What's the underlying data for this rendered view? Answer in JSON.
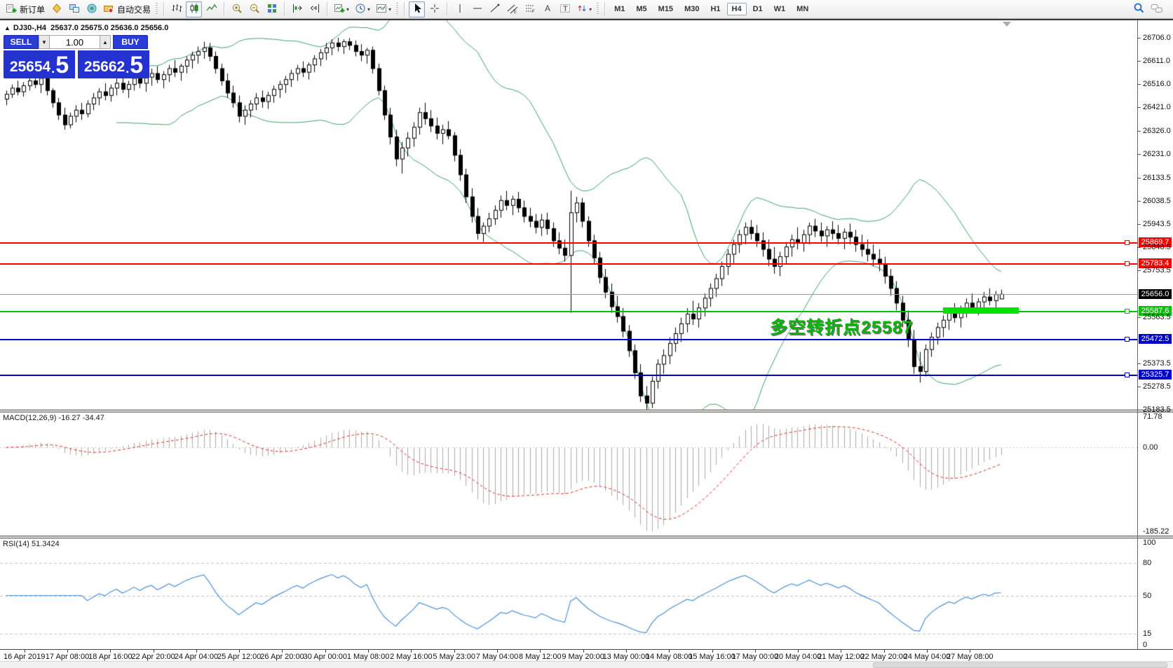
{
  "toolbar": {
    "new_order_label": "新订单",
    "auto_trading_label": "自动交易",
    "timeframes": [
      "M1",
      "M5",
      "M15",
      "M30",
      "H1",
      "H4",
      "D1",
      "W1",
      "MN"
    ],
    "active_timeframe": "H4"
  },
  "trade_panel": {
    "sell_label": "SELL",
    "buy_label": "BUY",
    "volume": "1.00",
    "sell_price_int": "25654",
    "sell_price_dec": "5",
    "buy_price_int": "25662",
    "buy_price_dec": "5"
  },
  "symbol_header": {
    "name": "DJ30-,H4",
    "ohlc": "25637.0 25675.0 25636.0 25656.0"
  },
  "annotation": {
    "text": "多空转折点25587"
  },
  "macd_label": "MACD(12,26,9) -16.27 -34.47",
  "rsi_label": "RSI(14) 51.3424",
  "colors": {
    "bull": "#ffffff",
    "bear": "#000000",
    "outline": "#000000",
    "bollinger": "#3da06a",
    "level_red": "#ff0000",
    "level_green": "#00c400",
    "level_blue": "#0000c8",
    "current_line": "#9c9c9c",
    "current_badge": "#000000",
    "macd_hist": "#ababab",
    "macd_signal": "#dd2c2c",
    "rsi_line": "#4a90d8",
    "rsi_levels": "#c4c4c4",
    "trade_blue": "#2a3cd6",
    "annotation_green": "#00b800",
    "highlight_green": "#00e300"
  },
  "chart_data": {
    "type": "candlestick",
    "symbol": "DJ30-",
    "timeframe": "H4",
    "title": "DJ30-,H4",
    "current_price": 25656.0,
    "ohlc_display": [
      25637.0,
      25675.0,
      25636.0,
      25656.0
    ],
    "y_ticks": [
      26706.0,
      26611.0,
      26516.0,
      26421.0,
      26326.0,
      26231.0,
      26133.5,
      26038.5,
      25943.5,
      25848.5,
      25753.5,
      25563.5,
      25373.5,
      25278.5,
      25183.5
    ],
    "y_range_note": "top 26706.0 bottom 25183.5 visible scale",
    "x_labels": [
      "16 Apr 2019",
      "17 Apr 08:00",
      "18 Apr 16:00",
      "22 Apr 20:00",
      "24 Apr 04:00",
      "25 Apr 12:00",
      "26 Apr 20:00",
      "30 Apr 00:00",
      "1 May 08:00",
      "2 May 16:00",
      "5 May 23:00",
      "7 May 04:00",
      "8 May 12:00",
      "9 May 20:00",
      "13 May 00:00",
      "14 May 08:00",
      "15 May 16:00",
      "17 May 00:00",
      "20 May 04:00",
      "21 May 12:00",
      "22 May 20:00",
      "24 May 04:00",
      "27 May 08:00"
    ],
    "price_levels": [
      {
        "value": 25869.7,
        "color": "red"
      },
      {
        "value": 25783.4,
        "color": "red"
      },
      {
        "value": 25656.0,
        "color": "current"
      },
      {
        "value": 25587.6,
        "color": "green"
      },
      {
        "value": 25472.5,
        "color": "blue"
      },
      {
        "value": 25325.7,
        "color": "blue"
      }
    ],
    "highlight_segment": {
      "price": 25587.6,
      "from_bar": 161,
      "to_bar": 174
    },
    "indicators": {
      "bollinger": {
        "period": 20,
        "deviation": 2
      },
      "macd": {
        "fast": 12,
        "slow": 26,
        "signal": 9,
        "current_main": -16.27,
        "current_signal": -34.47,
        "scale_ticks": [
          "71.78",
          "0.00",
          "-185.22"
        ],
        "scale_range": [
          71.78,
          -185.22
        ]
      },
      "rsi": {
        "period": 14,
        "current": 51.3424,
        "scale_ticks": [
          "100",
          "80",
          "50",
          "15",
          "0"
        ],
        "levels": [
          80,
          50,
          15
        ]
      }
    },
    "candles": [
      [
        26455,
        26490,
        26430,
        26475
      ],
      [
        26475,
        26515,
        26460,
        26500
      ],
      [
        26500,
        26530,
        26470,
        26485
      ],
      [
        26485,
        26525,
        26465,
        26510
      ],
      [
        26510,
        26545,
        26490,
        26530
      ],
      [
        26530,
        26560,
        26500,
        26515
      ],
      [
        26515,
        26550,
        26480,
        26540
      ],
      [
        26540,
        26555,
        26470,
        26490
      ],
      [
        26490,
        26500,
        26420,
        26440
      ],
      [
        26440,
        26460,
        26370,
        26390
      ],
      [
        26390,
        26420,
        26330,
        26350
      ],
      [
        26350,
        26400,
        26335,
        26385
      ],
      [
        26385,
        26430,
        26360,
        26410
      ],
      [
        26410,
        26440,
        26370,
        26395
      ],
      [
        26395,
        26450,
        26380,
        26435
      ],
      [
        26435,
        26480,
        26410,
        26460
      ],
      [
        26460,
        26500,
        26430,
        26485
      ],
      [
        26485,
        26520,
        26450,
        26470
      ],
      [
        26470,
        26515,
        26445,
        26500
      ],
      [
        26500,
        26540,
        26470,
        26520
      ],
      [
        26520,
        26550,
        26480,
        26495
      ],
      [
        26495,
        26530,
        26460,
        26515
      ],
      [
        26515,
        26555,
        26490,
        26540
      ],
      [
        26540,
        26570,
        26500,
        26520
      ],
      [
        26520,
        26555,
        26485,
        26545
      ],
      [
        26545,
        26580,
        26510,
        26560
      ],
      [
        26560,
        26590,
        26520,
        26535
      ],
      [
        26535,
        26570,
        26500,
        26555
      ],
      [
        26555,
        26595,
        26525,
        26580
      ],
      [
        26580,
        26615,
        26545,
        26565
      ],
      [
        26565,
        26600,
        26530,
        26590
      ],
      [
        26590,
        26630,
        26560,
        26615
      ],
      [
        26615,
        26650,
        26580,
        26635
      ],
      [
        26635,
        26670,
        26600,
        26650
      ],
      [
        26650,
        26690,
        26620,
        26665
      ],
      [
        26665,
        26685,
        26610,
        26630
      ],
      [
        26630,
        26650,
        26560,
        26580
      ],
      [
        26580,
        26600,
        26510,
        26530
      ],
      [
        26530,
        26560,
        26460,
        26480
      ],
      [
        26480,
        26510,
        26420,
        26440
      ],
      [
        26440,
        26470,
        26360,
        26385
      ],
      [
        26385,
        26430,
        26350,
        26410
      ],
      [
        26410,
        26450,
        26380,
        26435
      ],
      [
        26435,
        26480,
        26410,
        26460
      ],
      [
        26460,
        26490,
        26420,
        26445
      ],
      [
        26445,
        26485,
        26415,
        26470
      ],
      [
        26470,
        26510,
        26440,
        26495
      ],
      [
        26495,
        26530,
        26460,
        26515
      ],
      [
        26515,
        26550,
        26480,
        26535
      ],
      [
        26535,
        26575,
        26505,
        26560
      ],
      [
        26560,
        26595,
        26530,
        26580
      ],
      [
        26580,
        26610,
        26545,
        26565
      ],
      [
        26565,
        26605,
        26535,
        26595
      ],
      [
        26595,
        26635,
        26565,
        26620
      ],
      [
        26620,
        26660,
        26590,
        26645
      ],
      [
        26645,
        26685,
        26615,
        26665
      ],
      [
        26665,
        26700,
        26635,
        26685
      ],
      [
        26685,
        26706,
        26650,
        26670
      ],
      [
        26670,
        26700,
        26640,
        26690
      ],
      [
        26690,
        26705,
        26655,
        26675
      ],
      [
        26675,
        26695,
        26630,
        26650
      ],
      [
        26650,
        26680,
        26610,
        26635
      ],
      [
        26635,
        26665,
        26600,
        26655
      ],
      [
        26655,
        26670,
        26560,
        26580
      ],
      [
        26580,
        26600,
        26470,
        26490
      ],
      [
        26490,
        26510,
        26370,
        26390
      ],
      [
        26390,
        26420,
        26270,
        26300
      ],
      [
        26300,
        26330,
        26180,
        26210
      ],
      [
        26210,
        26280,
        26150,
        26255
      ],
      [
        26255,
        26320,
        26220,
        26295
      ],
      [
        26295,
        26360,
        26260,
        26340
      ],
      [
        26340,
        26420,
        26310,
        26400
      ],
      [
        26400,
        26440,
        26350,
        26375
      ],
      [
        26375,
        26410,
        26320,
        26345
      ],
      [
        26345,
        26380,
        26290,
        26315
      ],
      [
        26315,
        26350,
        26270,
        26330
      ],
      [
        26330,
        26365,
        26290,
        26305
      ],
      [
        26305,
        26320,
        26200,
        26225
      ],
      [
        26225,
        26250,
        26120,
        26145
      ],
      [
        26145,
        26170,
        26030,
        26055
      ],
      [
        26055,
        26090,
        25950,
        25975
      ],
      [
        25975,
        26010,
        25880,
        25905
      ],
      [
        25905,
        25950,
        25870,
        25935
      ],
      [
        25935,
        25990,
        25910,
        25965
      ],
      [
        25965,
        26020,
        25940,
        26000
      ],
      [
        26000,
        26060,
        25970,
        26040
      ],
      [
        26040,
        26080,
        26000,
        26020
      ],
      [
        26020,
        26060,
        25980,
        26045
      ],
      [
        26045,
        26075,
        25990,
        26010
      ],
      [
        26010,
        26040,
        25950,
        25975
      ],
      [
        25975,
        26010,
        25930,
        25955
      ],
      [
        25955,
        25985,
        25905,
        25930
      ],
      [
        25930,
        25985,
        25895,
        25960
      ],
      [
        25960,
        25990,
        25900,
        25925
      ],
      [
        25925,
        25950,
        25850,
        25875
      ],
      [
        25875,
        25910,
        25820,
        25845
      ],
      [
        25845,
        25880,
        25790,
        25815
      ],
      [
        25815,
        26080,
        25580,
        25990
      ],
      [
        25990,
        26055,
        25950,
        26030
      ],
      [
        26030,
        26050,
        25930,
        25955
      ],
      [
        25955,
        25975,
        25850,
        25875
      ],
      [
        25875,
        25900,
        25780,
        25805
      ],
      [
        25805,
        25830,
        25700,
        25725
      ],
      [
        25725,
        25760,
        25640,
        25665
      ],
      [
        25665,
        25700,
        25580,
        25605
      ],
      [
        25605,
        25650,
        25540,
        25565
      ],
      [
        25565,
        25600,
        25480,
        25505
      ],
      [
        25505,
        25530,
        25400,
        25425
      ],
      [
        25425,
        25450,
        25310,
        25335
      ],
      [
        25335,
        25370,
        25215,
        25240
      ],
      [
        25240,
        25280,
        25184,
        25210
      ],
      [
        25210,
        25320,
        25190,
        25300
      ],
      [
        25300,
        25390,
        25270,
        25370
      ],
      [
        25370,
        25430,
        25330,
        25405
      ],
      [
        25405,
        25480,
        25370,
        25455
      ],
      [
        25455,
        25520,
        25420,
        25495
      ],
      [
        25495,
        25560,
        25460,
        25535
      ],
      [
        25535,
        25600,
        25500,
        25575
      ],
      [
        25575,
        25630,
        25530,
        25555
      ],
      [
        25555,
        25620,
        25520,
        25600
      ],
      [
        25600,
        25660,
        25565,
        25640
      ],
      [
        25640,
        25700,
        25605,
        25680
      ],
      [
        25680,
        25740,
        25645,
        25720
      ],
      [
        25720,
        25790,
        25690,
        25770
      ],
      [
        25770,
        25840,
        25735,
        25820
      ],
      [
        25820,
        25880,
        25780,
        25860
      ],
      [
        25860,
        25920,
        25825,
        25900
      ],
      [
        25900,
        25950,
        25860,
        25930
      ],
      [
        25930,
        25960,
        25880,
        25905
      ],
      [
        25905,
        25940,
        25850,
        25875
      ],
      [
        25875,
        25910,
        25810,
        25840
      ],
      [
        25840,
        25880,
        25770,
        25800
      ],
      [
        25800,
        25850,
        25740,
        25770
      ],
      [
        25770,
        25830,
        25730,
        25810
      ],
      [
        25810,
        25870,
        25780,
        25850
      ],
      [
        25850,
        25900,
        25810,
        25880
      ],
      [
        25880,
        25930,
        25840,
        25865
      ],
      [
        25865,
        25920,
        25830,
        25900
      ],
      [
        25900,
        25950,
        25860,
        25935
      ],
      [
        25935,
        25965,
        25890,
        25915
      ],
      [
        25915,
        25950,
        25870,
        25895
      ],
      [
        25895,
        25935,
        25850,
        25920
      ],
      [
        25920,
        25955,
        25880,
        25905
      ],
      [
        25905,
        25940,
        25860,
        25885
      ],
      [
        25885,
        25925,
        25840,
        25910
      ],
      [
        25910,
        25945,
        25860,
        25890
      ],
      [
        25890,
        25920,
        25830,
        25860
      ],
      [
        25860,
        25900,
        25810,
        25840
      ],
      [
        25840,
        25880,
        25790,
        25820
      ],
      [
        25820,
        25860,
        25770,
        25800
      ],
      [
        25800,
        25840,
        25750,
        25780
      ],
      [
        25780,
        25810,
        25700,
        25730
      ],
      [
        25730,
        25760,
        25650,
        25680
      ],
      [
        25680,
        25710,
        25590,
        25620
      ],
      [
        25620,
        25650,
        25520,
        25550
      ],
      [
        25550,
        25590,
        25440,
        25470
      ],
      [
        25470,
        25510,
        25330,
        25360
      ],
      [
        25360,
        25420,
        25295,
        25340
      ],
      [
        25340,
        25450,
        25320,
        25430
      ],
      [
        25430,
        25500,
        25400,
        25480
      ],
      [
        25480,
        25540,
        25450,
        25520
      ],
      [
        25520,
        25570,
        25480,
        25550
      ],
      [
        25550,
        25600,
        25510,
        25580
      ],
      [
        25580,
        25620,
        25540,
        25560
      ],
      [
        25560,
        25610,
        25520,
        25595
      ],
      [
        25595,
        25640,
        25560,
        25620
      ],
      [
        25620,
        25660,
        25580,
        25600
      ],
      [
        25600,
        25640,
        25570,
        25625
      ],
      [
        25625,
        25665,
        25595,
        25645
      ],
      [
        25645,
        25680,
        25610,
        25630
      ],
      [
        25630,
        25670,
        25600,
        25655
      ],
      [
        25637,
        25675,
        25636,
        25656
      ]
    ]
  }
}
